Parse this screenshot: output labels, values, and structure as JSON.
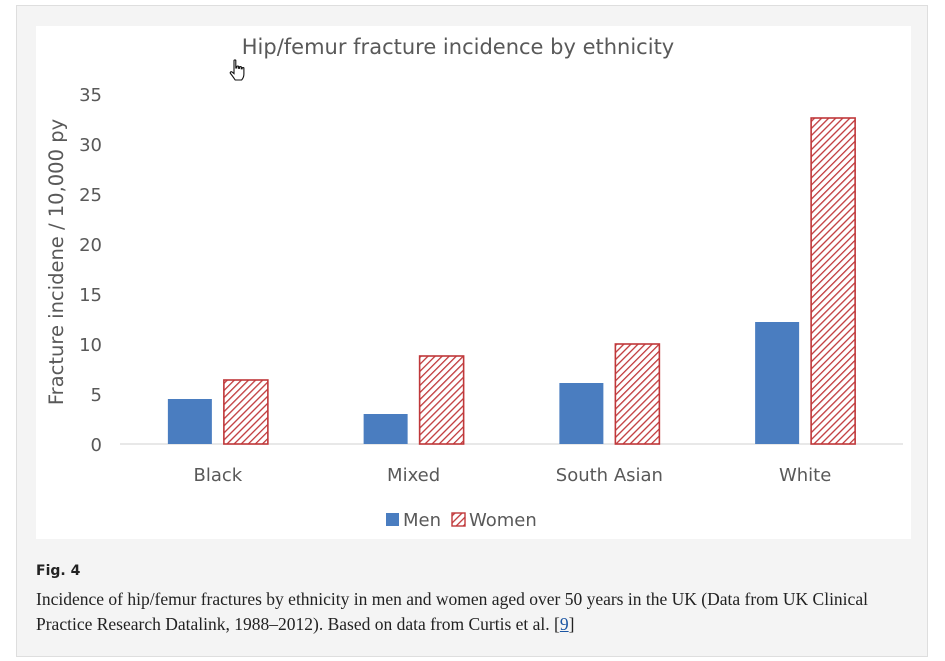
{
  "figure": {
    "label": "Fig. 4",
    "caption_text": "Incidence of hip/femur fractures by ethnicity in men and women aged over 50 years in the UK (Data from UK Clinical Practice Research Datalink, 1988–2012). Based on data from Curtis et al. [",
    "caption_ref": "9",
    "caption_end": "]"
  },
  "cursor_icon": "hand-pointer-icon",
  "chart_data": {
    "type": "bar",
    "title": "Hip/femur fracture incidence by ethnicity",
    "xlabel": "",
    "ylabel": "Fracture incidene / 10,000 py",
    "categories": [
      "Black",
      "Mixed",
      "South Asian",
      "White"
    ],
    "series": [
      {
        "name": "Men",
        "values": [
          4.5,
          3.0,
          6.1,
          12.2
        ],
        "color": "#4a7dc0",
        "pattern": "solid"
      },
      {
        "name": "Women",
        "values": [
          6.4,
          8.8,
          10.0,
          32.6
        ],
        "color": "#c0383a",
        "pattern": "diagonal-hatch"
      }
    ],
    "ylim": [
      0,
      35
    ],
    "yticks": [
      0,
      5,
      10,
      15,
      20,
      25,
      30,
      35
    ],
    "grid": false,
    "legend": "bottom"
  }
}
